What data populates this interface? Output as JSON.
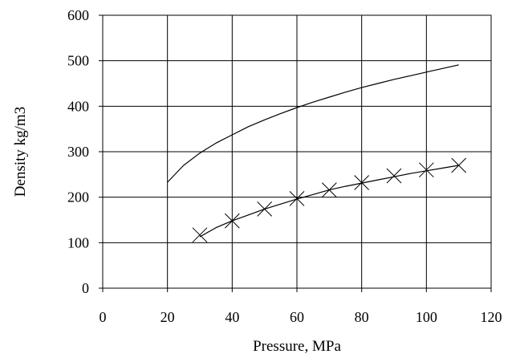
{
  "chart_data": {
    "type": "line",
    "title": "",
    "xlabel": "Pressure, MPa",
    "ylabel": "Density kg/m3",
    "xlim": [
      0,
      120
    ],
    "ylim": [
      0,
      600
    ],
    "x_ticks": [
      0,
      20,
      40,
      60,
      80,
      100,
      120
    ],
    "y_ticks": [
      0,
      100,
      200,
      300,
      400,
      500,
      600
    ],
    "grid": true,
    "legend": "none",
    "series": [
      {
        "marker": "none",
        "color": "#000000",
        "x": [
          20,
          25,
          30,
          35,
          40,
          45,
          50,
          55,
          60,
          65,
          70,
          75,
          80,
          85,
          90,
          95,
          100,
          105,
          110
        ],
        "y": [
          233,
          270,
          297,
          319,
          337,
          355,
          370,
          384,
          397,
          409,
          420,
          431,
          441,
          450,
          459,
          467,
          475,
          483,
          491
        ]
      },
      {
        "marker": "none",
        "color": "#000000",
        "x": [
          30,
          35,
          40,
          45,
          50,
          55,
          60,
          65,
          70,
          75,
          80,
          85,
          90,
          95,
          100,
          105,
          110
        ],
        "y": [
          113,
          133,
          148,
          161,
          174,
          185,
          196,
          206,
          216,
          224,
          231,
          238,
          245,
          252,
          258,
          264,
          270
        ]
      },
      {
        "marker": "x",
        "color": "#000000",
        "x": [
          30,
          40,
          50,
          60,
          70,
          80,
          90,
          100,
          110
        ],
        "y": [
          117,
          148,
          174,
          197,
          216,
          232,
          247,
          260,
          270
        ]
      }
    ]
  }
}
